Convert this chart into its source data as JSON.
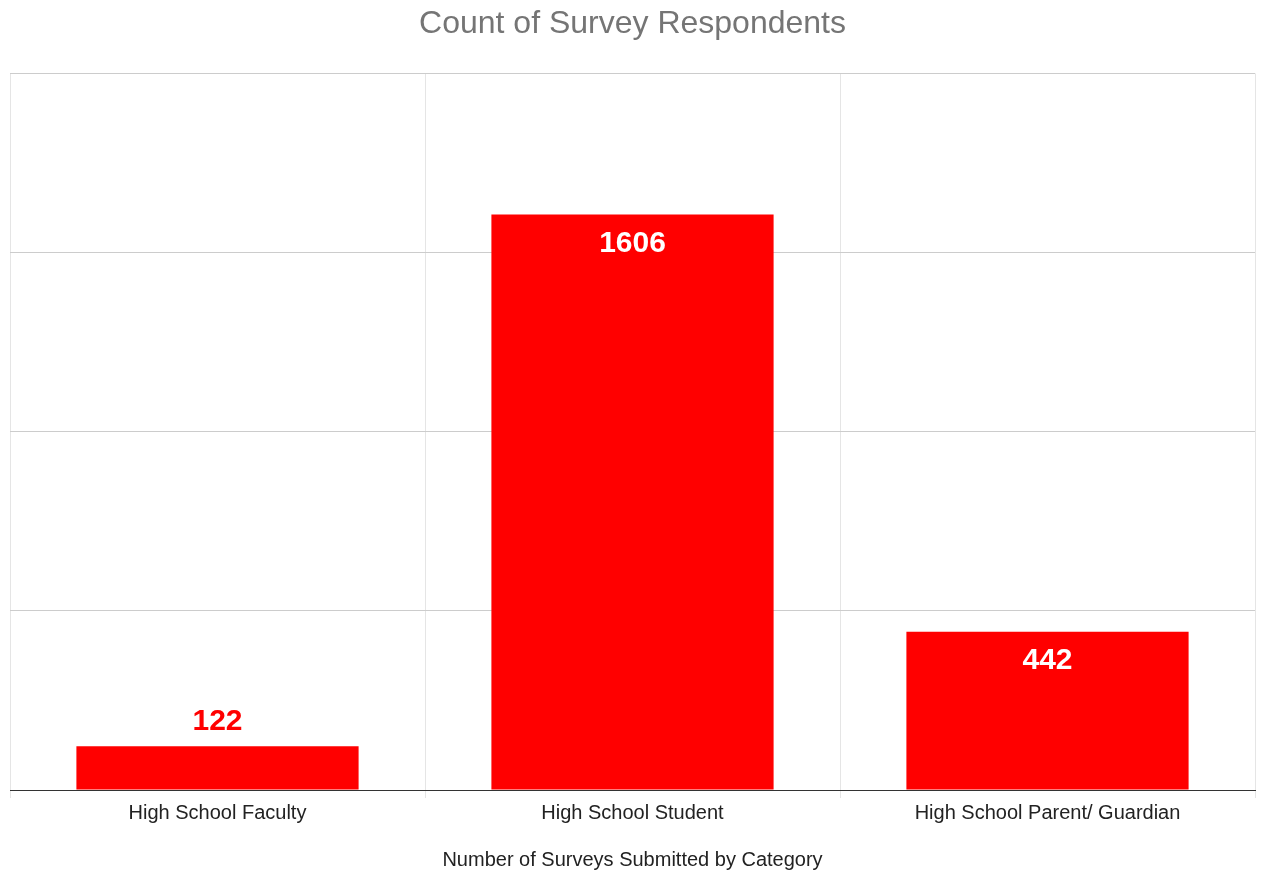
{
  "chart_data": {
    "type": "bar",
    "title": "Count of Survey Respondents",
    "xlabel": "Number of Surveys Submitted by Category",
    "categories": [
      "High School Faculty",
      "High School Student",
      "High School Parent/ Guardian"
    ],
    "values": [
      122,
      1606,
      442
    ],
    "color": "#ff0000",
    "ylim": [
      0,
      2000
    ],
    "yticks": [
      {
        "value": 0,
        "label": null
      },
      {
        "value": 500,
        "label": null
      },
      {
        "value": 1000,
        "label": null
      },
      {
        "value": 1500,
        "label": null
      },
      {
        "value": 2000,
        "label": null
      }
    ],
    "grid": true,
    "data_labels": true
  }
}
